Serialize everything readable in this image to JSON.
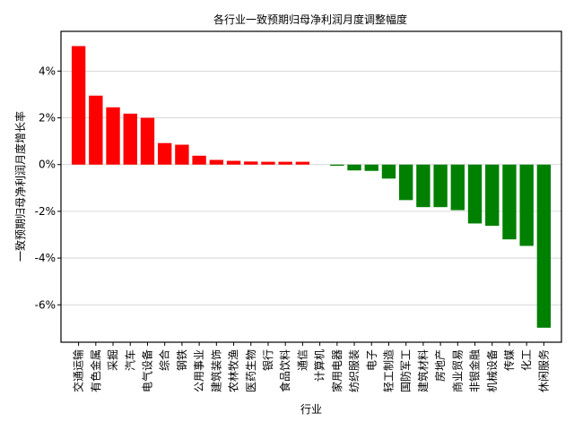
{
  "chart_data": {
    "type": "bar",
    "title": "各行业一致预期归母净利润月度调整幅度",
    "xlabel": "行业",
    "ylabel": "一致预期归母净利润月度增长率",
    "ylim": [
      -7.6,
      5.7
    ],
    "yticks": [
      -6,
      -4,
      -2,
      0,
      2,
      4
    ],
    "ytick_format": "percent",
    "grid": "horizontal",
    "positive_color": "#ff0000",
    "negative_color": "#008000",
    "categories": [
      "交通运输",
      "有色金属",
      "采掘",
      "汽车",
      "电气设备",
      "综合",
      "钢铁",
      "公用事业",
      "建筑装饰",
      "农林牧渔",
      "医药生物",
      "银行",
      "食品饮料",
      "通信",
      "计算机",
      "家用电器",
      "纺织服装",
      "电子",
      "轻工制造",
      "国防军工",
      "建筑材料",
      "房地产",
      "商业贸易",
      "非银金融",
      "机械设备",
      "传媒",
      "化工",
      "休闲服务"
    ],
    "values": [
      5.07,
      2.95,
      2.45,
      2.18,
      2.0,
      0.92,
      0.85,
      0.38,
      0.2,
      0.16,
      0.13,
      0.12,
      0.12,
      0.12,
      0.0,
      -0.05,
      -0.25,
      -0.27,
      -0.6,
      -1.52,
      -1.82,
      -1.82,
      -1.95,
      -2.52,
      -2.62,
      -3.2,
      -3.48,
      -6.98
    ]
  }
}
